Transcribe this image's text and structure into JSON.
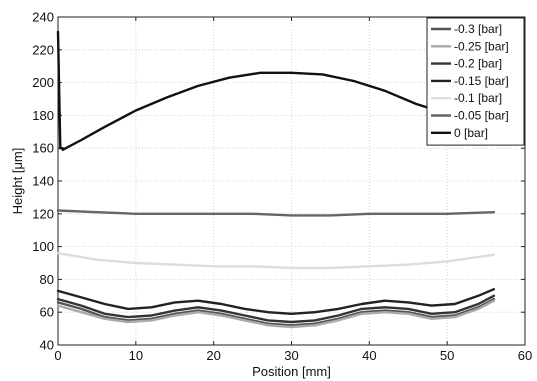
{
  "chart_data": {
    "type": "line",
    "xlabel": "Position [mm]",
    "ylabel": "Height [μm]",
    "xlim": [
      0,
      60
    ],
    "ylim": [
      40,
      240
    ],
    "xticks": [
      0,
      10,
      20,
      30,
      40,
      50,
      60
    ],
    "yticks": [
      40,
      60,
      80,
      100,
      120,
      140,
      160,
      180,
      200,
      220,
      240
    ],
    "grid": true,
    "legend_position": "top-right",
    "series": [
      {
        "name": "-0.3 [bar]",
        "color": "#555555",
        "x": [
          0,
          3,
          6,
          9,
          12,
          15,
          18,
          21,
          24,
          27,
          30,
          33,
          36,
          39,
          42,
          45,
          48,
          51,
          54,
          56
        ],
        "y": [
          66,
          62,
          57,
          55,
          56,
          59,
          61,
          59,
          56,
          53,
          52,
          53,
          56,
          60,
          61,
          60,
          57,
          58,
          63,
          68
        ]
      },
      {
        "name": "-0.25 [bar]",
        "color": "#aaaaaa",
        "x": [
          0,
          3,
          6,
          9,
          12,
          15,
          18,
          21,
          24,
          27,
          30,
          33,
          36,
          39,
          42,
          45,
          48,
          51,
          54,
          56
        ],
        "y": [
          64,
          60,
          56,
          54,
          55,
          58,
          60,
          58,
          55,
          52,
          51,
          52,
          55,
          59,
          60,
          59,
          56,
          57,
          62,
          67
        ]
      },
      {
        "name": "-0.2 [bar]",
        "color": "#333333",
        "x": [
          0,
          3,
          6,
          9,
          12,
          15,
          18,
          21,
          24,
          27,
          30,
          33,
          36,
          39,
          42,
          45,
          48,
          51,
          54,
          56
        ],
        "y": [
          68,
          64,
          59,
          57,
          58,
          61,
          63,
          61,
          58,
          55,
          54,
          55,
          58,
          62,
          63,
          62,
          59,
          60,
          65,
          70
        ]
      },
      {
        "name": "-0.15 [bar]",
        "color": "#222222",
        "x": [
          0,
          3,
          6,
          9,
          12,
          15,
          18,
          21,
          24,
          27,
          30,
          33,
          36,
          39,
          42,
          45,
          48,
          51,
          54,
          56
        ],
        "y": [
          73,
          69,
          65,
          62,
          63,
          66,
          67,
          65,
          62,
          60,
          59,
          60,
          62,
          65,
          67,
          66,
          64,
          65,
          70,
          74
        ]
      },
      {
        "name": "-0.1 [bar]",
        "color": "#dddddd",
        "x": [
          0,
          5,
          10,
          15,
          20,
          25,
          30,
          35,
          40,
          45,
          50,
          56
        ],
        "y": [
          96,
          92,
          90,
          89,
          88,
          88,
          87,
          87,
          88,
          89,
          91,
          95
        ]
      },
      {
        "name": "-0.05 [bar]",
        "color": "#666666",
        "x": [
          0,
          5,
          10,
          15,
          20,
          25,
          30,
          35,
          40,
          45,
          50,
          56
        ],
        "y": [
          122,
          121,
          120,
          120,
          120,
          120,
          119,
          119,
          120,
          120,
          120,
          121
        ]
      },
      {
        "name": "0 [bar]",
        "color": "#111111",
        "x": [
          0,
          0.3,
          0.6,
          0.6,
          3,
          6,
          10,
          14,
          18,
          22,
          26,
          30,
          34,
          38,
          42,
          46,
          48
        ],
        "y": [
          231,
          160,
          160,
          159,
          165,
          173,
          183,
          191,
          198,
          203,
          206,
          206,
          205,
          201,
          195,
          187,
          184
        ]
      }
    ]
  }
}
